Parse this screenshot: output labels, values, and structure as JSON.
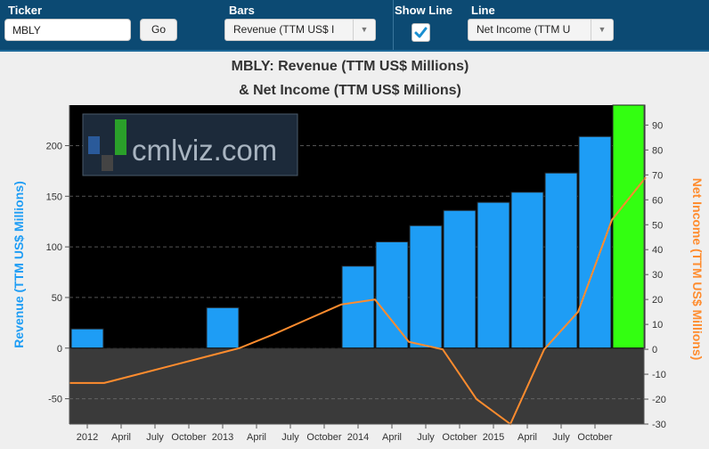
{
  "controls": {
    "ticker_label": "Ticker",
    "ticker_value": "MBLY",
    "go_label": "Go",
    "bars_label": "Bars",
    "bars_value": "Revenue (TTM US$ I",
    "show_line_label": "Show Line",
    "show_line_checked": true,
    "line_label": "Line",
    "line_value": "Net Income (TTM U"
  },
  "watermark": "cmlviz.com",
  "colors": {
    "bar": "#1e9df5",
    "bar_highlight": "#33ff11",
    "line": "#ff8c2e",
    "plot_bg_top": "#000000",
    "plot_bg_bottom": "#3a3a3a",
    "left_axis_title": "#1e9df5",
    "right_axis_title": "#ff8c2e"
  },
  "chart_data": {
    "type": "bar",
    "title": [
      "MBLY: Revenue (TTM US$ Millions)",
      "& Net Income (TTM US$ Millions)"
    ],
    "ylabel": "Revenue (TTM US$ Millions)",
    "y2label": "Net Income (TTM US$ Millions)",
    "ylim": [
      -75,
      240
    ],
    "y2lim": [
      -30,
      98
    ],
    "yticks": [
      -50,
      0,
      50,
      100,
      150,
      200
    ],
    "y2ticks": [
      -30,
      -20,
      -10,
      0,
      10,
      20,
      30,
      40,
      50,
      60,
      70,
      80,
      90
    ],
    "xticks": [
      "2012",
      "April",
      "July",
      "October",
      "2013",
      "April",
      "July",
      "October",
      "2014",
      "April",
      "July",
      "October",
      "2015",
      "April",
      "July",
      "October"
    ],
    "grid": true,
    "series": [
      {
        "kind": "bar",
        "axis": "left",
        "values": [
          19,
          0,
          0,
          0,
          40,
          0,
          0,
          0,
          81,
          105,
          121,
          136,
          144,
          154,
          173,
          209,
          240
        ]
      },
      {
        "kind": "line",
        "axis": "right",
        "values": [
          -13.5,
          -13.5,
          -10,
          -6.5,
          -3,
          0.5,
          6,
          12,
          18,
          20,
          3,
          0,
          -20,
          -30,
          0,
          15,
          52,
          69
        ]
      }
    ]
  }
}
